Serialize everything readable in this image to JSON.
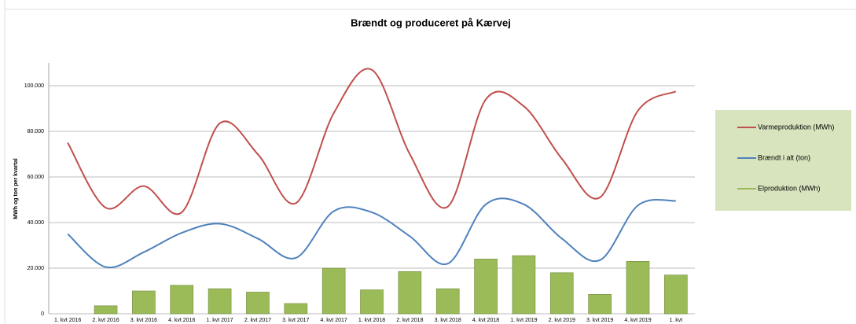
{
  "chart_data": {
    "type": "combo",
    "title": "Brændt og produceret på Kærvej",
    "y_label": "MWh og ton per kvartal",
    "categories": [
      "1. kvt 2016",
      "2. kvt 2016",
      "3. kvt 2016",
      "4. kvt 2016",
      "1. kvt 2017",
      "2. kvt 2017",
      "3. kvt 2017",
      "4. kvt 2017",
      "1. kvt 2018",
      "2. kvt 2018",
      "3. kvt 2018",
      "4. kvt 2018",
      "1. kvt 2019",
      "2. kvt 2019",
      "3. kvt 2019",
      "4. kvt 2019",
      "1. kvt"
    ],
    "series": [
      {
        "name": "Varmeproduktion (MWh)",
        "kind": "line",
        "color": "#c0504d",
        "values": [
          75000,
          46500,
          56000,
          44500,
          83500,
          70000,
          48500,
          88000,
          107000,
          70000,
          47000,
          94000,
          91000,
          68000,
          51000,
          89000,
          97500
        ]
      },
      {
        "name": "Brændt i alt (ton)",
        "kind": "line",
        "color": "#4f81bd",
        "values": [
          35000,
          20500,
          27000,
          35500,
          39500,
          33000,
          24500,
          45000,
          44500,
          34000,
          22000,
          48000,
          48000,
          33000,
          23500,
          47500,
          49500
        ]
      },
      {
        "name": "Elproduktion (MWh)",
        "kind": "bar",
        "color": "#9bbb59",
        "values": [
          null,
          3500,
          10000,
          12500,
          11000,
          9500,
          4500,
          20000,
          10500,
          18500,
          11000,
          24000,
          25500,
          18000,
          8500,
          23000,
          17000
        ]
      }
    ],
    "ylim": [
      0,
      110000
    ],
    "yticks": [
      0,
      {
        "value": 20000,
        "label": "20.000"
      },
      {
        "value": 40000,
        "label": "40.000"
      },
      {
        "value": 60000,
        "label": "60.000"
      },
      {
        "value": 80000,
        "label": "80.000"
      },
      {
        "value": 100000,
        "label": "100.000"
      }
    ],
    "grid": true,
    "legend": "right"
  }
}
